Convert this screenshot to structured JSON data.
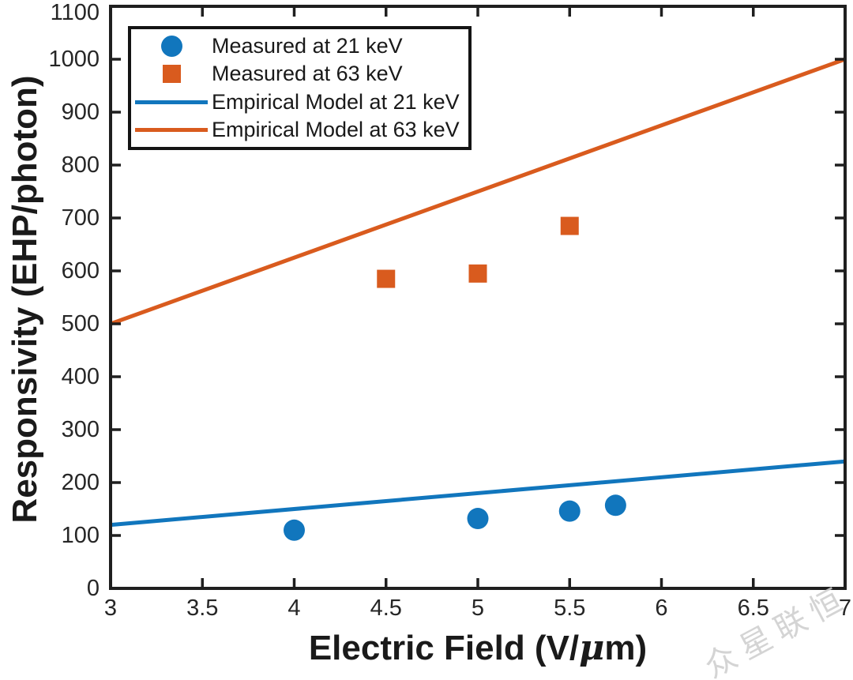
{
  "figure": {
    "watermark_text": "众星联恒"
  },
  "chart_data": {
    "type": "scatter",
    "title": "",
    "xlabel": "Electric Field (V/μm)",
    "ylabel": "Responsivity (EHP/photon)",
    "xlim": [
      3,
      7
    ],
    "ylim": [
      0,
      1100
    ],
    "xticks": [
      3,
      3.5,
      4,
      4.5,
      5,
      5.5,
      6,
      6.5,
      7
    ],
    "yticks": [
      0,
      100,
      200,
      300,
      400,
      500,
      600,
      700,
      800,
      900,
      1000,
      1100
    ],
    "grid": false,
    "tick_direction": "in",
    "box": true,
    "legend_position": "top-left",
    "colors": {
      "axis": "#1F1F1F",
      "tick_label": "#262626",
      "watermark": "#CDCDCD"
    },
    "series": [
      {
        "name": "Measured at 21 keV",
        "kind": "scatter",
        "marker": "circle",
        "color": "#1176BD",
        "x": [
          4,
          5,
          5.5,
          5.75
        ],
        "y": [
          110,
          132,
          146,
          157
        ]
      },
      {
        "name": "Measured at 63 keV",
        "kind": "scatter",
        "marker": "square",
        "color": "#D95B1E",
        "x": [
          4.5,
          5,
          5.5
        ],
        "y": [
          585,
          595,
          685
        ]
      },
      {
        "name": "Empirical Model at 21 keV",
        "kind": "line",
        "color": "#1176BD",
        "x": [
          3,
          7
        ],
        "y": [
          120,
          240
        ]
      },
      {
        "name": "Empirical Model at 63 keV",
        "kind": "line",
        "color": "#D95B1E",
        "x": [
          3,
          7
        ],
        "y": [
          500,
          1000
        ]
      }
    ]
  }
}
